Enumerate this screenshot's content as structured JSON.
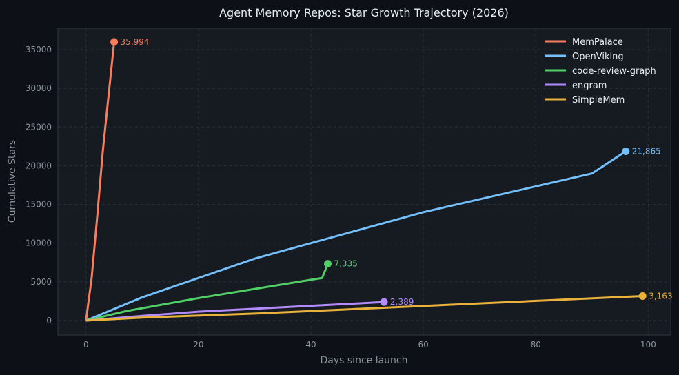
{
  "chart_data": {
    "type": "line",
    "title": "Agent Memory Repos: Star Growth Trajectory (2026)",
    "xlabel": "Days since launch",
    "ylabel": "Cumulative Stars",
    "xlim": [
      -5,
      104
    ],
    "ylim": [
      -1870,
      37760
    ],
    "xticks": [
      0,
      20,
      40,
      60,
      80,
      100
    ],
    "yticks": [
      0,
      5000,
      10000,
      15000,
      20000,
      25000,
      30000,
      35000
    ],
    "grid": true,
    "legend_position": "top-right",
    "colors": {
      "background": "#0d1117",
      "plot": "#161b22",
      "grid": "#2a3038",
      "text": "#e6edf3",
      "muted": "#8b949e"
    },
    "series": [
      {
        "name": "MemPalace",
        "color": "#f97d5c",
        "end_label": "35,994",
        "points": [
          [
            0,
            0
          ],
          [
            1,
            5500
          ],
          [
            2,
            13500
          ],
          [
            3,
            22000
          ],
          [
            4,
            29000
          ],
          [
            5,
            35994
          ]
        ]
      },
      {
        "name": "OpenViking",
        "color": "#74c0fc",
        "end_label": "21,865",
        "points": [
          [
            0,
            0
          ],
          [
            10,
            3000
          ],
          [
            20,
            5500
          ],
          [
            30,
            8000
          ],
          [
            60,
            14000
          ],
          [
            90,
            19000
          ],
          [
            96,
            21865
          ]
        ]
      },
      {
        "name": "code-review-graph",
        "color": "#51cf66",
        "end_label": "7,335",
        "points": [
          [
            0,
            0
          ],
          [
            7,
            1200
          ],
          [
            20,
            2900
          ],
          [
            42,
            5500
          ],
          [
            43,
            7335
          ]
        ]
      },
      {
        "name": "engram",
        "color": "#b38bfa",
        "end_label": "2,389",
        "points": [
          [
            0,
            0
          ],
          [
            10,
            600
          ],
          [
            20,
            1150
          ],
          [
            53,
            2389
          ]
        ]
      },
      {
        "name": "SimpleMem",
        "color": "#e9b23a",
        "end_label": "3,163",
        "points": [
          [
            0,
            0
          ],
          [
            10,
            380
          ],
          [
            30,
            900
          ],
          [
            99,
            3163
          ]
        ]
      }
    ]
  }
}
